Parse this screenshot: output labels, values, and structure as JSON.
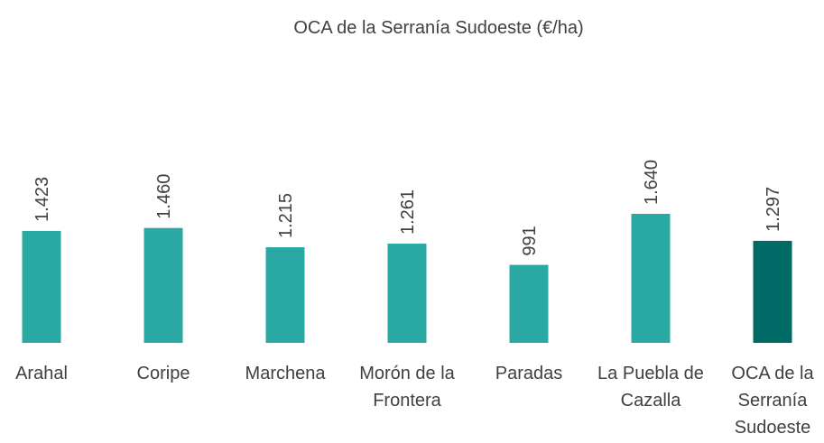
{
  "chart_data": {
    "type": "bar",
    "title": "OCA de la Serranía Sudoeste (€/ha)",
    "categories": [
      "Arahal",
      "Coripe",
      "Marchena",
      "Morón de la Frontera",
      "Paradas",
      "La Puebla de Cazalla",
      "OCA de la Serranía Sudoeste"
    ],
    "values": [
      1423,
      1460,
      1215,
      1261,
      991,
      1640,
      1297
    ],
    "value_labels": [
      "1.423",
      "1.460",
      "1.215",
      "1.261",
      "991",
      "1.640",
      "1.297"
    ],
    "colors": [
      "#2aa8a4",
      "#2aa8a4",
      "#2aa8a4",
      "#2aa8a4",
      "#2aa8a4",
      "#2aa8a4",
      "#006a66"
    ]
  }
}
